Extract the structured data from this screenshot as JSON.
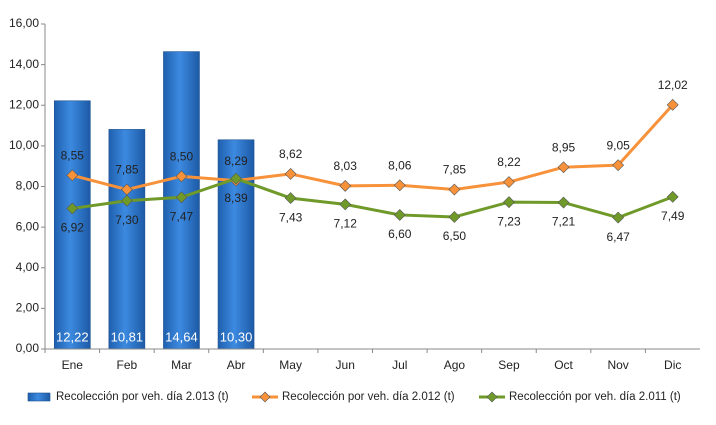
{
  "chart_data": {
    "type": "combo",
    "categories": [
      "Ene",
      "Feb",
      "Mar",
      "Abr",
      "May",
      "Jun",
      "Jul",
      "Ago",
      "Sep",
      "Oct",
      "Nov",
      "Dic"
    ],
    "ylim": [
      0,
      16
    ],
    "yticks": [
      {
        "value": 0,
        "label": "0,00"
      },
      {
        "value": 2,
        "label": "2,00"
      },
      {
        "value": 4,
        "label": "4,00"
      },
      {
        "value": 6,
        "label": "6,00"
      },
      {
        "value": 8,
        "label": "8,00"
      },
      {
        "value": 10,
        "label": "10,00"
      },
      {
        "value": 12,
        "label": "12,00"
      },
      {
        "value": 14,
        "label": "14,00"
      },
      {
        "value": 16,
        "label": "16,00"
      }
    ],
    "grid": false,
    "legend": "bottom",
    "series": [
      {
        "name": "Recolección por veh. día 2.013 (t)",
        "type": "bar",
        "color": "#2f77c9",
        "values": [
          12.22,
          10.81,
          14.64,
          10.3,
          null,
          null,
          null,
          null,
          null,
          null,
          null,
          null
        ],
        "value_labels": [
          "12,22",
          "10,81",
          "14,64",
          "10,30",
          null,
          null,
          null,
          null,
          null,
          null,
          null,
          null
        ]
      },
      {
        "name": "Recolección por veh. día 2.012 (t)",
        "type": "line",
        "color": "#f7923a",
        "values": [
          8.55,
          7.85,
          8.5,
          8.29,
          8.62,
          8.03,
          8.06,
          7.85,
          8.22,
          8.95,
          9.05,
          12.02
        ],
        "value_labels": [
          "8,55",
          "7,85",
          "8,50",
          "8,29",
          "8,62",
          "8,03",
          "8,06",
          "7,85",
          "8,22",
          "8,95",
          "9,05",
          "12,02"
        ]
      },
      {
        "name": "Recolección por veh. día 2.011 (t)",
        "type": "line",
        "color": "#6f9a2a",
        "values": [
          6.92,
          7.3,
          7.47,
          8.39,
          7.43,
          7.12,
          6.6,
          6.5,
          7.23,
          7.21,
          6.47,
          7.49
        ],
        "value_labels": [
          "6,92",
          "7,30",
          "7,47",
          "8,39",
          "7,43",
          "7,12",
          "6,60",
          "6,50",
          "7,23",
          "7,21",
          "6,47",
          "7,49"
        ]
      }
    ]
  }
}
